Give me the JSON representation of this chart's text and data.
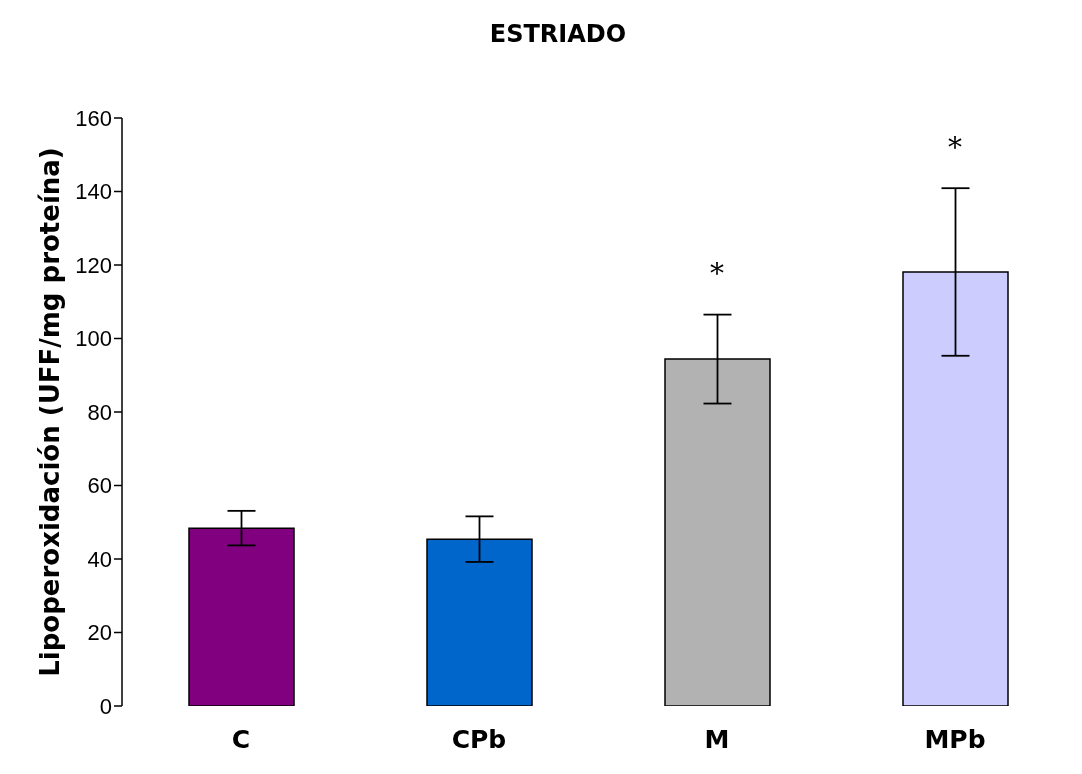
{
  "chart_data": {
    "type": "bar",
    "title": "ESTRIADO",
    "ylabel": "Lipoperoxidación (UFF/mg proteína)",
    "categories": [
      "C",
      "CPb",
      "M",
      "MPb"
    ],
    "values": [
      48.4,
      45.4,
      94.4,
      118.1
    ],
    "errors": [
      4.7,
      6.2,
      12.1,
      22.8
    ],
    "colors": [
      "#800080",
      "#0066cc",
      "#b2b2b2",
      "#ccccff"
    ],
    "ylim": [
      0,
      160
    ],
    "yticks": [
      0,
      20,
      40,
      60,
      80,
      100,
      120,
      140,
      160
    ],
    "grid": false,
    "legend": false,
    "annotations": [
      "*",
      "*"
    ]
  }
}
